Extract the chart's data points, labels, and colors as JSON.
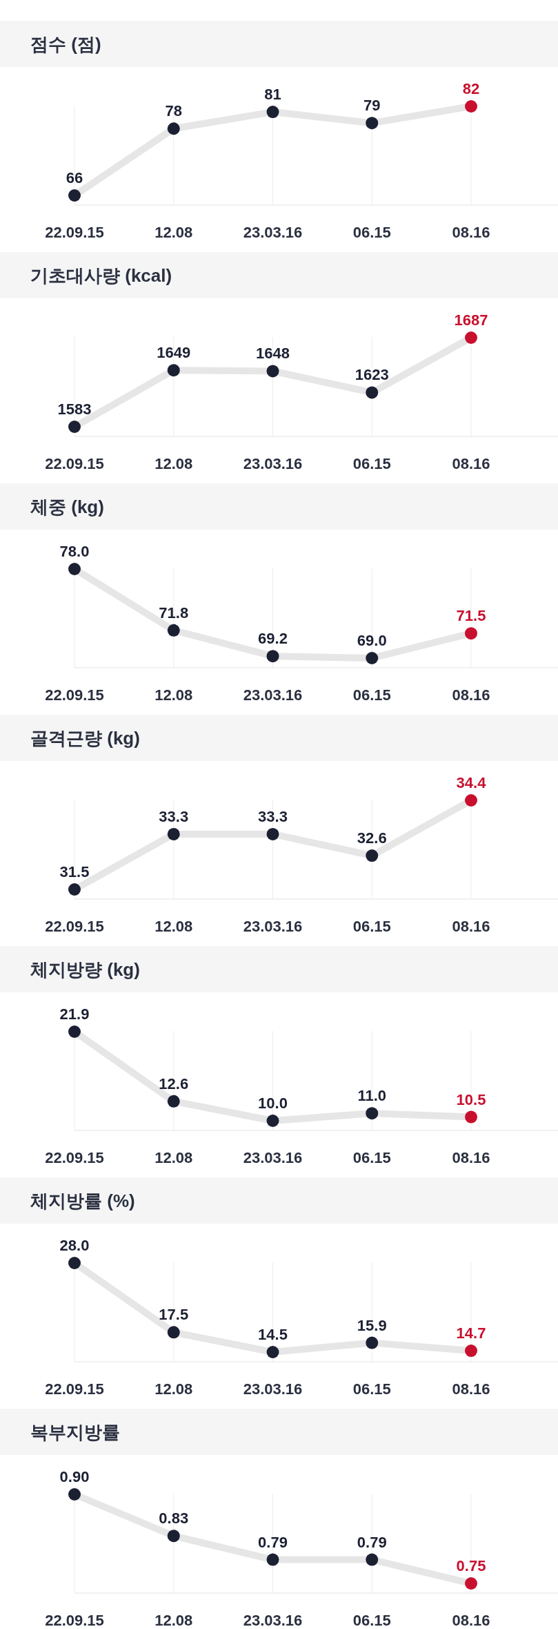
{
  "chart_data": [
    {
      "type": "line",
      "title": "점수 (점)",
      "categories": [
        "22.09.15",
        "12.08",
        "23.03.16",
        "06.15",
        "08.16"
      ],
      "series": [
        {
          "color": "#e6e6e6",
          "colors": [
            "#1c2033",
            "#1c2033",
            "#1c2033",
            "#1c2033",
            "#c8102e"
          ],
          "values": [
            66,
            78,
            81,
            79,
            82
          ],
          "value_labels": [
            "66",
            "78",
            "81",
            "79",
            "82"
          ]
        }
      ],
      "grid": "x",
      "marker": "circle"
    },
    {
      "type": "line",
      "title": "기초대사량 (kcal)",
      "categories": [
        "22.09.15",
        "12.08",
        "23.03.16",
        "06.15",
        "08.16"
      ],
      "series": [
        {
          "color": "#e6e6e6",
          "colors": [
            "#1c2033",
            "#1c2033",
            "#1c2033",
            "#1c2033",
            "#c8102e"
          ],
          "values": [
            1583,
            1649,
            1648,
            1623,
            1687
          ],
          "value_labels": [
            "1583",
            "1649",
            "1648",
            "1623",
            "1687"
          ]
        }
      ],
      "grid": "x",
      "marker": "circle"
    },
    {
      "type": "line",
      "title": "체중 (kg)",
      "categories": [
        "22.09.15",
        "12.08",
        "23.03.16",
        "06.15",
        "08.16"
      ],
      "series": [
        {
          "color": "#e6e6e6",
          "colors": [
            "#1c2033",
            "#1c2033",
            "#1c2033",
            "#1c2033",
            "#c8102e"
          ],
          "values": [
            78.0,
            71.8,
            69.2,
            69.0,
            71.5
          ],
          "value_labels": [
            "78.0",
            "71.8",
            "69.2",
            "69.0",
            "71.5"
          ]
        }
      ],
      "grid": "x",
      "marker": "circle"
    },
    {
      "type": "line",
      "title": "골격근량 (kg)",
      "categories": [
        "22.09.15",
        "12.08",
        "23.03.16",
        "06.15",
        "08.16"
      ],
      "series": [
        {
          "color": "#e6e6e6",
          "colors": [
            "#1c2033",
            "#1c2033",
            "#1c2033",
            "#1c2033",
            "#c8102e"
          ],
          "values": [
            31.5,
            33.3,
            33.3,
            32.6,
            34.4
          ],
          "value_labels": [
            "31.5",
            "33.3",
            "33.3",
            "32.6",
            "34.4"
          ]
        }
      ],
      "grid": "x",
      "marker": "circle"
    },
    {
      "type": "line",
      "title": "체지방량 (kg)",
      "categories": [
        "22.09.15",
        "12.08",
        "23.03.16",
        "06.15",
        "08.16"
      ],
      "series": [
        {
          "color": "#e6e6e6",
          "colors": [
            "#1c2033",
            "#1c2033",
            "#1c2033",
            "#1c2033",
            "#c8102e"
          ],
          "values": [
            21.9,
            12.6,
            10.0,
            11.0,
            10.5
          ],
          "value_labels": [
            "21.9",
            "12.6",
            "10.0",
            "11.0",
            "10.5"
          ]
        }
      ],
      "grid": "x",
      "marker": "circle"
    },
    {
      "type": "line",
      "title": "체지방률 (%)",
      "categories": [
        "22.09.15",
        "12.08",
        "23.03.16",
        "06.15",
        "08.16"
      ],
      "series": [
        {
          "color": "#e6e6e6",
          "colors": [
            "#1c2033",
            "#1c2033",
            "#1c2033",
            "#1c2033",
            "#c8102e"
          ],
          "values": [
            28.0,
            17.5,
            14.5,
            15.9,
            14.7
          ],
          "value_labels": [
            "28.0",
            "17.5",
            "14.5",
            "15.9",
            "14.7"
          ]
        }
      ],
      "grid": "x",
      "marker": "circle"
    },
    {
      "type": "line",
      "title": "복부지방률",
      "categories": [
        "22.09.15",
        "12.08",
        "23.03.16",
        "06.15",
        "08.16"
      ],
      "series": [
        {
          "color": "#e6e6e6",
          "colors": [
            "#1c2033",
            "#1c2033",
            "#1c2033",
            "#1c2033",
            "#c8102e"
          ],
          "values": [
            0.9,
            0.83,
            0.79,
            0.79,
            0.75
          ],
          "value_labels": [
            "0.90",
            "0.83",
            "0.79",
            "0.79",
            "0.75"
          ]
        }
      ],
      "grid": "x",
      "marker": "circle"
    }
  ]
}
